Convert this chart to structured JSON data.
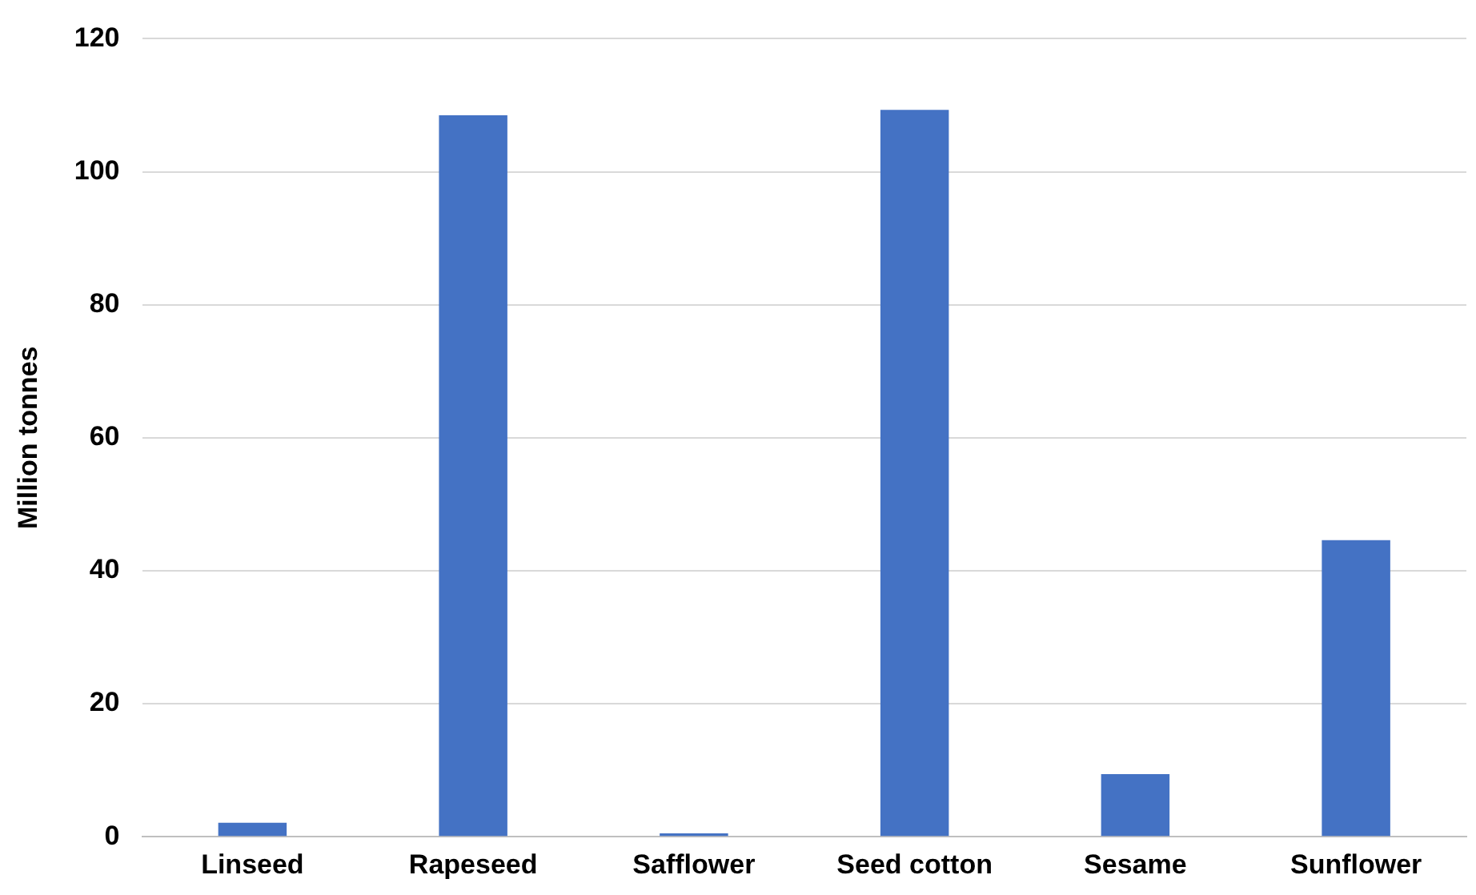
{
  "chart_data": {
    "type": "bar",
    "ylabel": "Million tonnes",
    "categories": [
      "Linseed",
      "Rapeseed",
      "Safflower",
      "Seed cotton",
      "Sesame",
      "Sunflower"
    ],
    "values": [
      2.1,
      108.5,
      0.5,
      109.3,
      9.4,
      44.6
    ],
    "color": "#4472c4",
    "ylim": [
      0,
      120
    ],
    "yticks": [
      0,
      20,
      40,
      60,
      80,
      100,
      120
    ],
    "grid": "y"
  }
}
